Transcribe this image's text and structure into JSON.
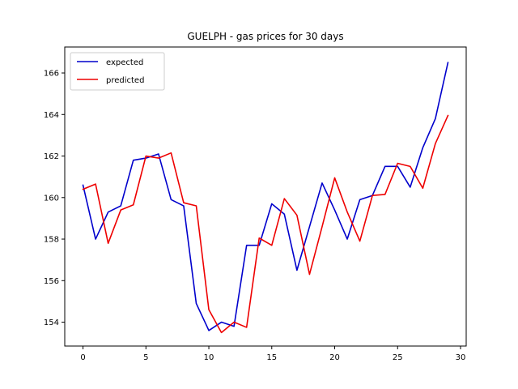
{
  "chart_data": {
    "type": "line",
    "title": "GUELPH - gas prices for 30 days",
    "xlabel": "",
    "ylabel": "",
    "xlim": [
      -1.45,
      30.45
    ],
    "ylim": [
      152.85,
      167.25
    ],
    "xticks": [
      0,
      5,
      10,
      15,
      20,
      25,
      30
    ],
    "yticks": [
      154,
      156,
      158,
      160,
      162,
      164,
      166
    ],
    "grid": false,
    "legend_position": "top-left",
    "x": [
      0,
      1,
      2,
      3,
      4,
      5,
      6,
      7,
      8,
      9,
      10,
      11,
      12,
      13,
      14,
      15,
      16,
      17,
      18,
      19,
      20,
      21,
      22,
      23,
      24,
      25,
      26,
      27,
      28,
      29
    ],
    "series": [
      {
        "name": "expected",
        "color": "#0000cc",
        "values": [
          160.6,
          158.0,
          159.3,
          159.6,
          161.8,
          161.9,
          162.1,
          159.9,
          159.6,
          154.9,
          153.6,
          154.0,
          153.8,
          157.7,
          157.7,
          159.7,
          159.2,
          156.5,
          158.6,
          160.7,
          159.4,
          158.0,
          159.9,
          160.1,
          161.5,
          161.5,
          160.5,
          162.4,
          163.8,
          166.5
        ]
      },
      {
        "name": "predicted",
        "color": "#ee0000",
        "values": [
          160.4,
          160.65,
          157.8,
          159.4,
          159.65,
          162.0,
          161.9,
          162.15,
          159.75,
          159.6,
          154.6,
          153.5,
          154.0,
          153.75,
          158.05,
          157.7,
          159.95,
          159.15,
          156.3,
          158.6,
          160.95,
          159.3,
          157.9,
          160.1,
          160.15,
          161.65,
          161.5,
          160.45,
          162.6,
          163.95
        ]
      }
    ]
  }
}
